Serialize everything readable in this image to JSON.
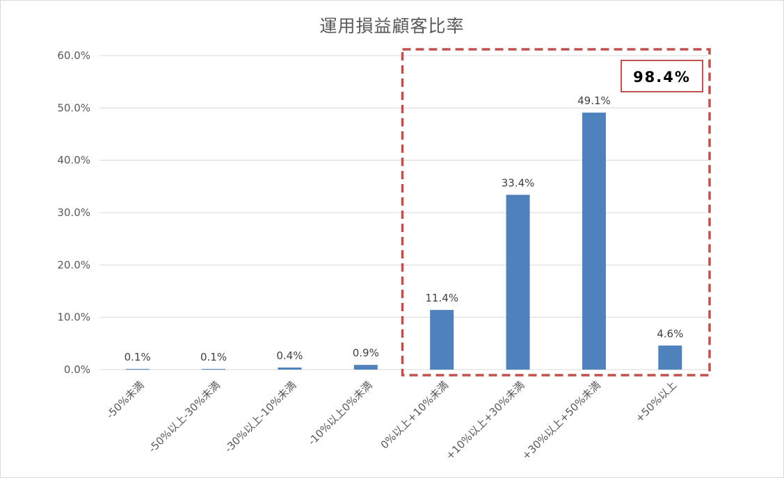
{
  "chart_data": {
    "type": "bar",
    "title": "運用損益顧客比率",
    "categories": [
      "-50%未満",
      "-50%以上-30%未満",
      "-30%以上-10%未満",
      "-10%以上0%未満",
      "0%以上+10%未満",
      "+10%以上+30%未満",
      "+30%以上+50%未満",
      "+50%以上"
    ],
    "values": [
      0.1,
      0.1,
      0.4,
      0.9,
      11.4,
      33.4,
      49.1,
      4.6
    ],
    "data_labels": [
      "0.1%",
      "0.1%",
      "0.4%",
      "0.9%",
      "11.4%",
      "33.4%",
      "49.1%",
      "4.6%"
    ],
    "y_ticks": [
      0,
      10,
      20,
      30,
      40,
      50,
      60
    ],
    "y_tick_labels": [
      "0.0%",
      "10.0%",
      "20.0%",
      "30.0%",
      "40.0%",
      "50.0%",
      "60.0%"
    ],
    "ylim": [
      0,
      60
    ],
    "grid": true,
    "xlabel": "",
    "ylabel": "",
    "bar_color": "#4f81bd",
    "highlight": {
      "from_category_index": 4,
      "to_category_index": 7,
      "label": "98.4%",
      "color": "#c0504d"
    }
  }
}
